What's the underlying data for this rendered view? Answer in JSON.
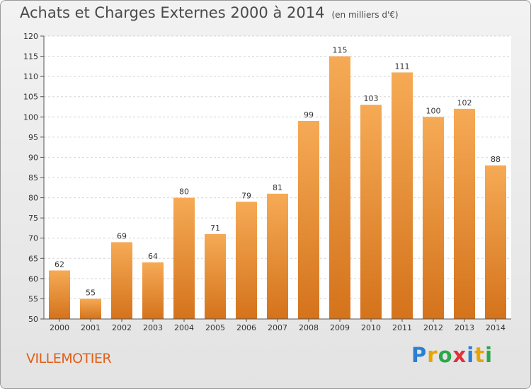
{
  "title": "Achats et Charges Externes 2000 à 2014",
  "subtitle": "(en milliers d'€)",
  "place": "VILLEMOTIER",
  "brand": {
    "letters": [
      "P",
      "r",
      "o",
      "x",
      "i",
      "t",
      "i"
    ],
    "colors": [
      "#2a7fd4",
      "#e8a400",
      "#2aa84a",
      "#e0303a",
      "#2a7fd4",
      "#e8a400",
      "#2aa84a"
    ]
  },
  "colors": {
    "bar_top": "#f6aa55",
    "bar_bottom": "#d4731c",
    "place": "#e0601a"
  },
  "chart_data": {
    "type": "bar",
    "categories": [
      "2000",
      "2001",
      "2002",
      "2003",
      "2004",
      "2005",
      "2006",
      "2007",
      "2008",
      "2009",
      "2010",
      "2011",
      "2012",
      "2013",
      "2014"
    ],
    "values": [
      62,
      55,
      69,
      64,
      80,
      71,
      79,
      81,
      99,
      115,
      103,
      111,
      100,
      102,
      88
    ],
    "ylim": [
      50,
      120
    ],
    "yticks": [
      50,
      55,
      60,
      65,
      70,
      75,
      80,
      85,
      90,
      95,
      100,
      105,
      110,
      115,
      120
    ],
    "grid": true,
    "title": "Achats et Charges Externes 2000 à 2014",
    "xlabel": "",
    "ylabel": ""
  }
}
